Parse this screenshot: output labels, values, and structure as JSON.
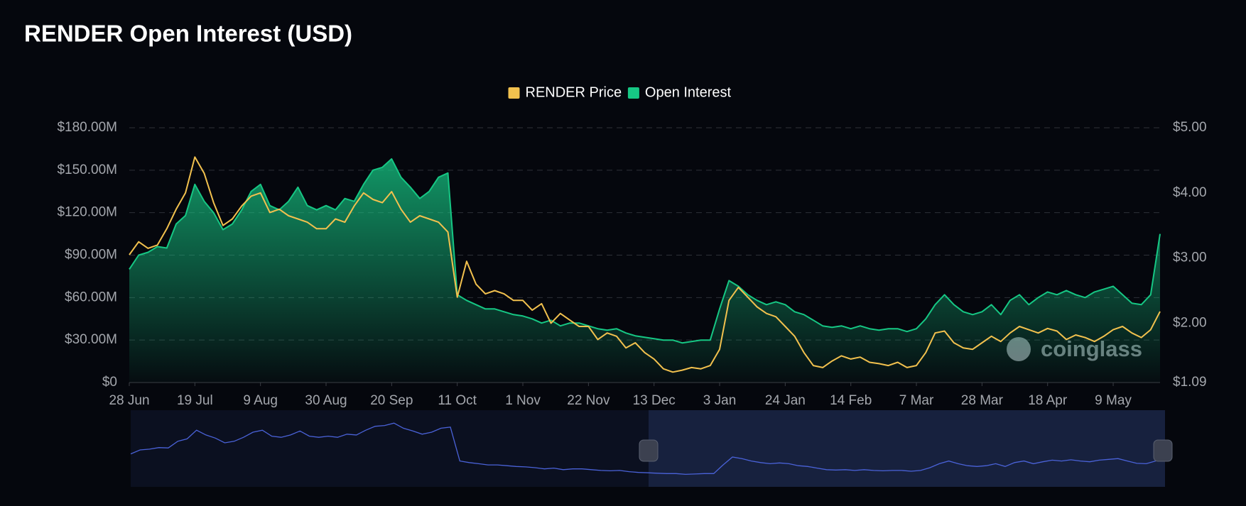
{
  "chart_data": {
    "type": "line",
    "title": "RENDER Open Interest (USD)",
    "watermark": "coinglass",
    "legend": "top",
    "grid": true,
    "categories": [
      "28 Jun",
      null,
      null,
      null,
      null,
      null,
      null,
      "19 Jul",
      null,
      null,
      null,
      null,
      null,
      null,
      "9 Aug",
      null,
      null,
      null,
      null,
      null,
      null,
      "30 Aug",
      null,
      null,
      null,
      null,
      null,
      null,
      "20 Sep",
      null,
      null,
      null,
      null,
      null,
      null,
      "11 Oct",
      null,
      null,
      null,
      null,
      null,
      null,
      "1 Nov",
      null,
      null,
      null,
      null,
      null,
      null,
      "22 Nov",
      null,
      null,
      null,
      null,
      null,
      null,
      "13 Dec",
      null,
      null,
      null,
      null,
      null,
      null,
      "3 Jan",
      null,
      null,
      null,
      null,
      null,
      null,
      "24 Jan",
      null,
      null,
      null,
      null,
      null,
      null,
      "14 Feb",
      null,
      null,
      null,
      null,
      null,
      null,
      "7 Mar",
      null,
      null,
      null,
      null,
      null,
      null,
      "28 Mar",
      null,
      null,
      null,
      null,
      null,
      null,
      "18 Apr",
      null,
      null,
      null,
      null,
      null,
      null,
      "9 May",
      null,
      null,
      null,
      null,
      null
    ],
    "series": [
      {
        "name": "RENDER Price",
        "color": "#f2c14e",
        "axis": "y2",
        "values": [
          3.05,
          3.25,
          3.15,
          3.2,
          3.45,
          3.75,
          4.0,
          4.55,
          4.3,
          3.85,
          3.5,
          3.6,
          3.8,
          3.95,
          4.0,
          3.7,
          3.75,
          3.65,
          3.6,
          3.55,
          3.45,
          3.45,
          3.6,
          3.55,
          3.8,
          4.0,
          3.9,
          3.85,
          4.02,
          3.75,
          3.55,
          3.65,
          3.6,
          3.55,
          3.4,
          2.4,
          2.95,
          2.6,
          2.45,
          2.5,
          2.45,
          2.35,
          2.35,
          2.2,
          2.3,
          2.0,
          2.15,
          2.05,
          1.95,
          1.95,
          1.75,
          1.85,
          1.8,
          1.62,
          1.7,
          1.55,
          1.45,
          1.3,
          1.25,
          1.28,
          1.32,
          1.3,
          1.35,
          1.6,
          2.35,
          2.55,
          2.4,
          2.25,
          2.15,
          2.1,
          1.95,
          1.8,
          1.55,
          1.35,
          1.32,
          1.42,
          1.5,
          1.45,
          1.48,
          1.4,
          1.38,
          1.35,
          1.4,
          1.32,
          1.35,
          1.55,
          1.85,
          1.88,
          1.7,
          1.62,
          1.6,
          1.7,
          1.8,
          1.72,
          1.85,
          1.95,
          1.9,
          1.85,
          1.92,
          1.88,
          1.75,
          1.82,
          1.78,
          1.72,
          1.8,
          1.9,
          1.95,
          1.85,
          1.78,
          1.9,
          2.18
        ]
      },
      {
        "name": "Open Interest",
        "color": "#16c784",
        "axis": "y",
        "values": [
          80,
          90,
          92,
          96,
          95,
          112,
          118,
          140,
          128,
          120,
          108,
          112,
          122,
          135,
          140,
          125,
          122,
          128,
          138,
          125,
          122,
          125,
          122,
          130,
          128,
          140,
          150,
          152,
          158,
          145,
          138,
          130,
          135,
          145,
          148,
          62,
          58,
          55,
          52,
          52,
          50,
          48,
          47,
          45,
          42,
          44,
          40,
          42,
          42,
          40,
          38,
          37,
          38,
          35,
          33,
          32,
          31,
          30,
          30,
          28,
          29,
          30,
          30,
          52,
          72,
          68,
          62,
          58,
          55,
          57,
          55,
          50,
          48,
          44,
          40,
          39,
          40,
          38,
          40,
          38,
          37,
          38,
          38,
          36,
          38,
          45,
          55,
          62,
          55,
          50,
          48,
          50,
          55,
          48,
          58,
          62,
          55,
          60,
          64,
          62,
          65,
          62,
          60,
          64,
          66,
          68,
          62,
          56,
          55,
          62,
          105
        ]
      }
    ],
    "ylim": [
      0,
      180
    ],
    "yticks": [
      {
        "value": 0,
        "label": "$0"
      },
      {
        "value": 30,
        "label": "$30.00M"
      },
      {
        "value": 60,
        "label": "$60.00M"
      },
      {
        "value": 90,
        "label": "$90.00M"
      },
      {
        "value": 120,
        "label": "$120.00M"
      },
      {
        "value": 150,
        "label": "$150.00M"
      },
      {
        "value": 180,
        "label": "$180.00M"
      }
    ],
    "y2lim": [
      1.09,
      5
    ],
    "y2ticks": [
      {
        "value": 1.09,
        "label": "$1.09"
      },
      {
        "value": 2,
        "label": "$2.00"
      },
      {
        "value": 3,
        "label": "$3.00"
      },
      {
        "value": 4,
        "label": "$4.00"
      },
      {
        "value": 5,
        "label": "$5.00"
      }
    ]
  }
}
